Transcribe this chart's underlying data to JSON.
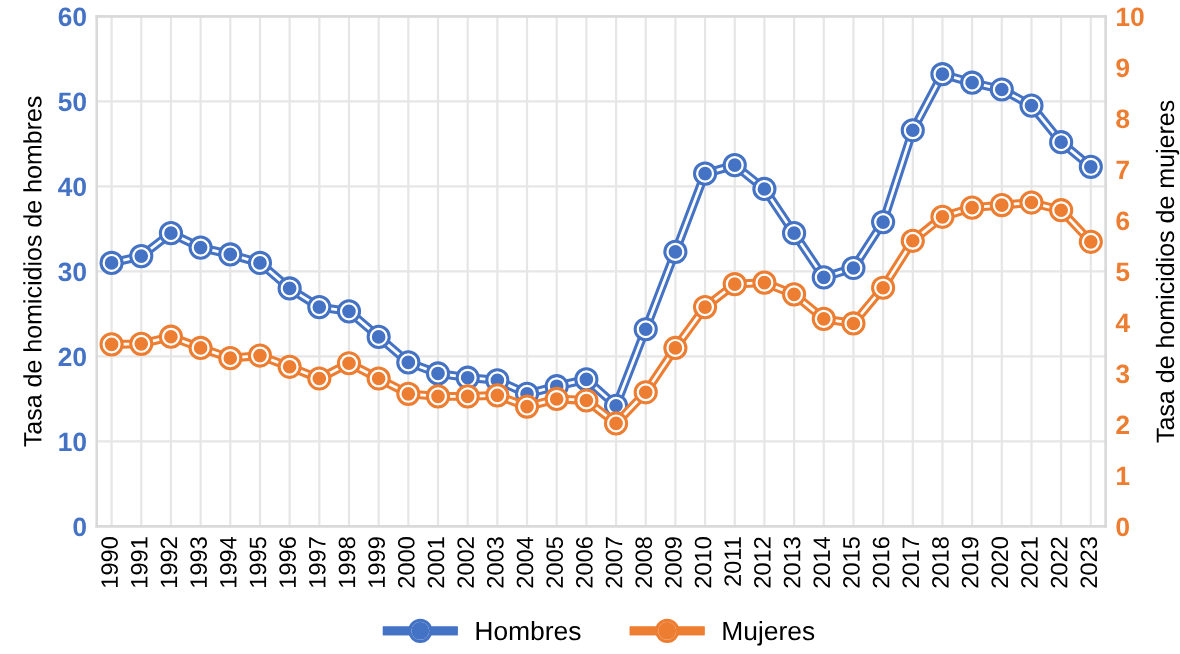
{
  "chart_data": {
    "type": "line",
    "ylabel": "Tasa de homicidios de hombres",
    "y2label": "Tasa de homicidios de mujeres",
    "categories": [
      "1990",
      "1991",
      "1992",
      "1993",
      "1994",
      "1995",
      "1996",
      "1997",
      "1998",
      "1999",
      "2000",
      "2001",
      "2002",
      "2003",
      "2004",
      "2005",
      "2006",
      "2007",
      "2008",
      "2009",
      "2010",
      "2011",
      "2012",
      "2013",
      "2014",
      "2015",
      "2016",
      "2017",
      "2018",
      "2019",
      "2020",
      "2021",
      "2022",
      "2023"
    ],
    "series": [
      {
        "name": "Hombres",
        "color": "#4472c4",
        "values": [
          31,
          31.8,
          34.5,
          32.8,
          32,
          31,
          28,
          25.8,
          25.3,
          22.3,
          19.3,
          18,
          17.5,
          17.2,
          15.6,
          16.5,
          17.3,
          14.2,
          23.2,
          32.3,
          41.5,
          42.5,
          39.7,
          34.5,
          29.3,
          30.4,
          35.8,
          46.6,
          53.2,
          52.2,
          51.4,
          49.5,
          45.2,
          42.3
        ]
      },
      {
        "name": "Mujeres",
        "color": "#ed7d31",
        "axis": "y2",
        "values": [
          3.57,
          3.58,
          3.72,
          3.5,
          3.3,
          3.35,
          3.13,
          2.9,
          3.2,
          2.9,
          2.6,
          2.55,
          2.55,
          2.57,
          2.35,
          2.5,
          2.47,
          2.02,
          2.63,
          3.5,
          4.3,
          4.75,
          4.78,
          4.55,
          4.07,
          3.98,
          4.68,
          5.6,
          6.07,
          6.25,
          6.3,
          6.35,
          6.2,
          5.58
        ]
      }
    ],
    "ylim": [
      0,
      60
    ],
    "yticks": [
      0,
      10,
      20,
      30,
      40,
      50,
      60
    ],
    "y2lim": [
      0,
      10
    ],
    "y2ticks": [
      0,
      1,
      2,
      3,
      4,
      5,
      6,
      7,
      8,
      9,
      10
    ],
    "grid": true,
    "legend": "bottom",
    "marker": "circle",
    "line_style": "solid"
  }
}
